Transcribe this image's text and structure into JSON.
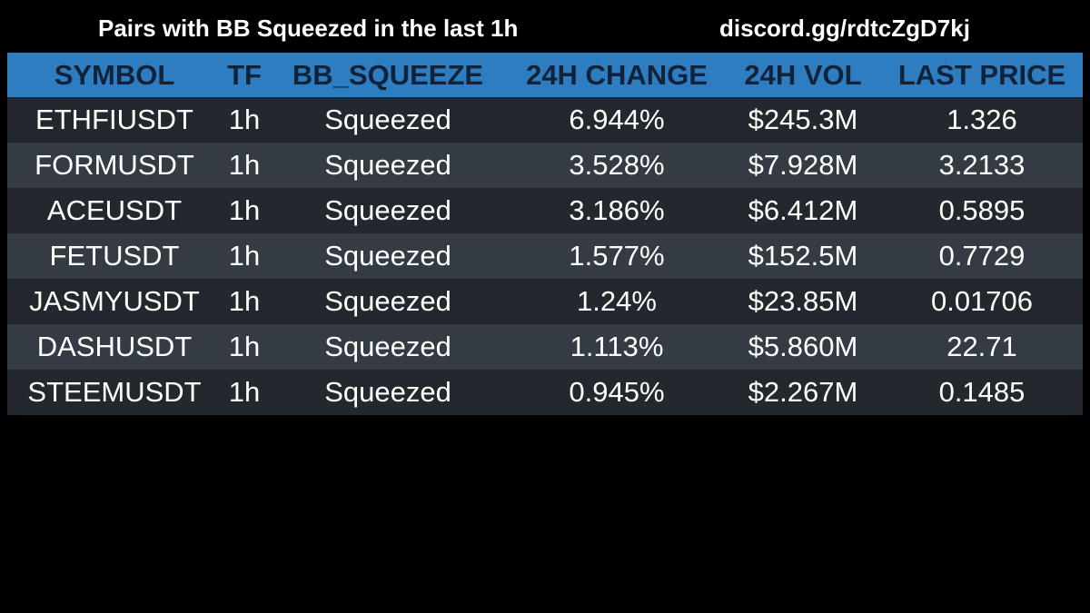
{
  "header": {
    "title": "Pairs with BB Squeezed in the last 1h",
    "invite_link": "discord.gg/rdtcZgD7kj"
  },
  "table": {
    "columns": [
      "SYMBOL",
      "TF",
      "BB_SQUEEZE",
      "24H CHANGE",
      "24H VOL",
      "LAST PRICE"
    ],
    "rows": [
      [
        "ETHFIUSDT",
        "1h",
        "Squeezed",
        "6.944%",
        "$245.3M",
        "1.326"
      ],
      [
        "FORMUSDT",
        "1h",
        "Squeezed",
        "3.528%",
        "$7.928M",
        "3.2133"
      ],
      [
        "ACEUSDT",
        "1h",
        "Squeezed",
        "3.186%",
        "$6.412M",
        "0.5895"
      ],
      [
        "FETUSDT",
        "1h",
        "Squeezed",
        "1.577%",
        "$152.5M",
        "0.7729"
      ],
      [
        "JASMYUSDT",
        "1h",
        "Squeezed",
        "1.24%",
        "$23.85M",
        "0.01706"
      ],
      [
        "DASHUSDT",
        "1h",
        "Squeezed",
        "1.113%",
        "$5.860M",
        "22.71"
      ],
      [
        "STEEMUSDT",
        "1h",
        "Squeezed",
        "0.945%",
        "$2.267M",
        "0.1485"
      ]
    ]
  },
  "colors": {
    "background": "#000000",
    "header_row": "#2f7dc1",
    "header_text": "#10233a",
    "row_dark": "#23282e",
    "row_light": "#343b43",
    "text": "#ffffff"
  }
}
